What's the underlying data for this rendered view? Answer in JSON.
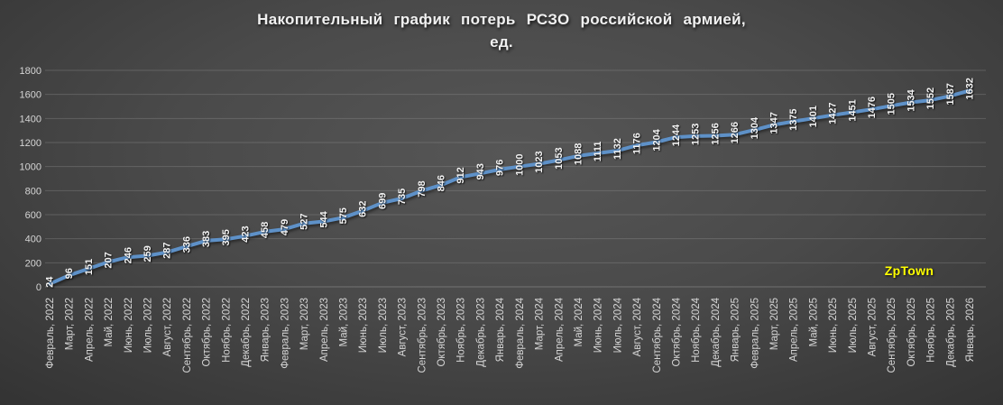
{
  "title": {
    "line1": "Накопительный график потерь РСЗО российской армией,",
    "line2": "ед."
  },
  "watermark": {
    "text": "ZpTown",
    "color": "#ffff00"
  },
  "colors": {
    "background_center": "#545454",
    "background_edge": "#262626",
    "line": "#5e91c8",
    "data_label": "#f4f4f4",
    "axis_label": "#d5d5d5",
    "gridline": "#9b9b9b",
    "title": "#f1f1f1",
    "watermark": "#ffff00"
  },
  "chart_data": {
    "type": "line",
    "title": "Накопительный график потерь РСЗО российской армией, ед.",
    "xlabel": "",
    "ylabel": "",
    "ylim": [
      0,
      1800
    ],
    "ytick_step": 200,
    "yticks": [
      0,
      200,
      400,
      600,
      800,
      1000,
      1200,
      1400,
      1600,
      1800
    ],
    "grid": true,
    "legend": false,
    "data_labels_rotated_vertical": true,
    "categories": [
      "Февраль, 2022",
      "Март, 2022",
      "Апрель, 2022",
      "Май, 2022",
      "Июнь, 2022",
      "Июль, 2022",
      "Август, 2022",
      "Сентябрь, 2022",
      "Октябрь, 2022",
      "Ноябрь, 2022",
      "Декабрь, 2022",
      "Январь, 2023",
      "Февраль, 2023",
      "Март, 2023",
      "Апрель, 2023",
      "Май, 2023",
      "Июнь, 2023",
      "Июль, 2023",
      "Август, 2023",
      "Сентябрь, 2023",
      "Октябрь, 2023",
      "Ноябрь, 2023",
      "Декабрь, 2023",
      "Январь, 2024",
      "Февраль, 2024",
      "Март, 2024",
      "Апрель, 2024",
      "Май, 2024",
      "Июнь, 2024",
      "Июль, 2024",
      "Август, 2024",
      "Сентябрь, 2024",
      "Октябрь, 2024",
      "Ноябрь, 2024",
      "Декабрь, 2024",
      "Январь, 2025",
      "Февраль, 2025",
      "Март, 2025",
      "Апрель, 2025",
      "Май, 2025",
      "Июнь, 2025",
      "Июль, 2025",
      "Август, 2025",
      "Сентябрь, 2025",
      "Октябрь, 2025",
      "Ноябрь, 2025",
      "Декабрь, 2025",
      "Январь, 2026"
    ],
    "values": [
      24,
      96,
      151,
      207,
      246,
      259,
      287,
      336,
      383,
      395,
      423,
      458,
      479,
      527,
      544,
      575,
      632,
      699,
      735,
      798,
      846,
      912,
      943,
      976,
      1000,
      1023,
      1053,
      1088,
      1111,
      1132,
      1176,
      1204,
      1244,
      1253,
      1256,
      1266,
      1304,
      1347,
      1375,
      1401,
      1427,
      1451,
      1476,
      1505,
      1534,
      1552,
      1587,
      1632
    ]
  }
}
